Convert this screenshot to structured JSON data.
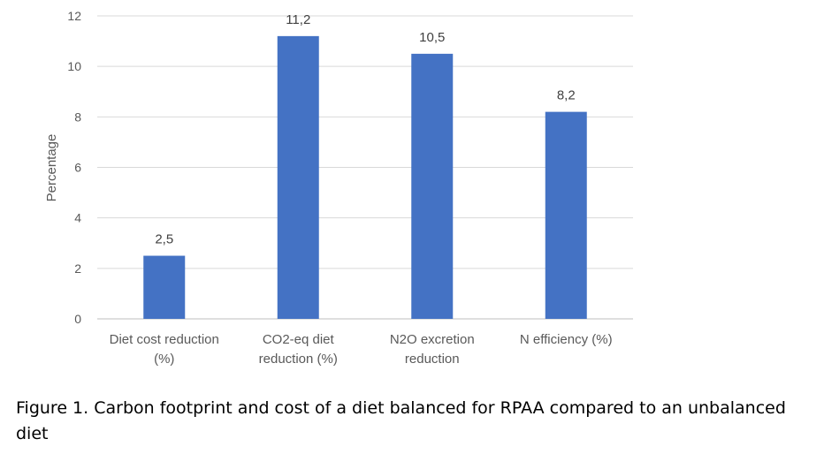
{
  "chart_data": {
    "type": "bar",
    "categories": [
      [
        "Diet cost reduction",
        "(%)"
      ],
      [
        "CO2-eq diet",
        "reduction (%)"
      ],
      [
        "N2O excretion",
        "reduction"
      ],
      [
        "N efficiency (%)"
      ]
    ],
    "values": [
      2.5,
      11.2,
      10.5,
      8.2
    ],
    "data_labels": [
      "2,5",
      "11,2",
      "10,5",
      "8,2"
    ],
    "ylabel": "Percentage",
    "xlabel": "",
    "ylim": [
      0,
      12
    ],
    "yticks": [
      0,
      2,
      4,
      6,
      8,
      10,
      12
    ],
    "grid": true,
    "legend": "none",
    "bar_color": "#4472C4"
  },
  "caption": "Figure 1. Carbon footprint and cost of a diet balanced for RPAA compared to an unbalanced diet"
}
